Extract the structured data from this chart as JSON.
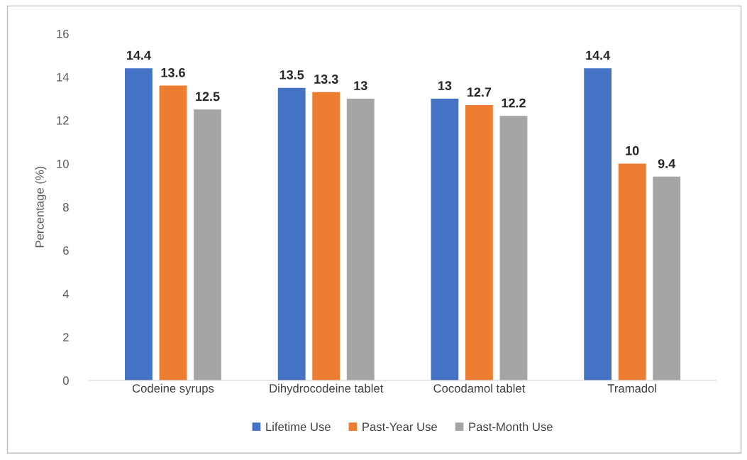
{
  "chart_data": {
    "type": "bar",
    "ylabel": "Percentage (%)",
    "categories": [
      "Codeine syrups",
      "Dihydrocodeine tablet",
      "Cocodamol tablet",
      "Tramadol"
    ],
    "series": [
      {
        "name": "Lifetime Use",
        "color": "#4472c4",
        "values": [
          14.4,
          13.5,
          13,
          14.4
        ]
      },
      {
        "name": "Past-Year Use",
        "color": "#ed7d31",
        "values": [
          13.6,
          13.3,
          12.7,
          10
        ]
      },
      {
        "name": "Past-Month Use",
        "color": "#a5a5a5",
        "values": [
          12.5,
          13,
          12.2,
          9.4
        ]
      }
    ],
    "ylim": [
      0,
      16
    ],
    "yticks": [
      0,
      2,
      4,
      6,
      8,
      10,
      12,
      14,
      16
    ],
    "data_labels": true,
    "grid": false,
    "legend": "bottom"
  }
}
